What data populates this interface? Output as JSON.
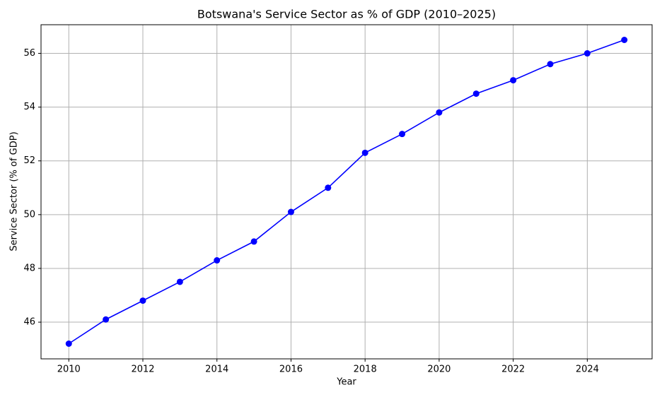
{
  "chart_data": {
    "type": "line",
    "title": "Botswana's Service Sector as % of GDP (2010–2025)",
    "x_label": "Year",
    "y_label": "Service Sector (% of GDP)",
    "x": [
      2010,
      2011,
      2012,
      2013,
      2014,
      2015,
      2016,
      2017,
      2018,
      2019,
      2020,
      2021,
      2022,
      2023,
      2024,
      2025
    ],
    "values": [
      45.2,
      46.1,
      46.8,
      47.5,
      48.3,
      49.0,
      50.1,
      51.0,
      52.3,
      53.0,
      53.8,
      54.5,
      55.0,
      55.6,
      56.0,
      56.5
    ],
    "color": "#0000ff",
    "xlim": [
      2009.25,
      2025.75
    ],
    "xticks": [
      2010,
      2012,
      2014,
      2016,
      2018,
      2020,
      2022,
      2024
    ],
    "ylim": [
      44.635,
      57.065
    ],
    "yticks": [
      46,
      48,
      50,
      52,
      54,
      56
    ],
    "grid": true
  }
}
